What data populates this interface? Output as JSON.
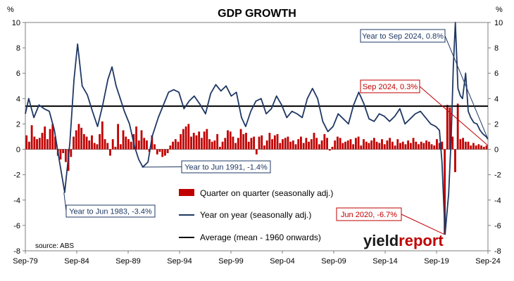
{
  "chart_data": {
    "type": "bar+line",
    "title": "GDP GROWTH",
    "ylabel_left": "%",
    "ylabel_right": "%",
    "ylim": [
      -8,
      10
    ],
    "yticks": [
      10,
      8,
      6,
      4,
      2,
      0,
      -2,
      -4,
      -6,
      -8
    ],
    "x_start": 1979.67,
    "x_end": 2024.67,
    "xticks": [
      "Sep-79",
      "Sep-84",
      "Sep-89",
      "Sep-94",
      "Sep-99",
      "Sep-04",
      "Sep-09",
      "Sep-14",
      "Sep-19",
      "Sep-24"
    ],
    "average_line": {
      "name": "Average (mean - 1960 onwards)",
      "value": 3.4
    },
    "series": [
      {
        "name": "Quarter on quarter (seasonally adj.)",
        "kind": "bar",
        "color": "#c00000",
        "values": [
          1.1,
          0.6,
          1.9,
          1.0,
          0.8,
          0.9,
          1.3,
          1.8,
          0.8,
          1.6,
          2.0,
          1.0,
          -0.5,
          -0.8,
          -0.3,
          -1.0,
          -1.7,
          -0.6,
          1.0,
          1.5,
          2.0,
          1.7,
          1.2,
          1.0,
          0.7,
          1.1,
          0.5,
          0.4,
          1.2,
          2.2,
          0.8,
          0.5,
          -0.5,
          0.8,
          0.2,
          2.0,
          0.4,
          1.5,
          1.0,
          0.8,
          0.6,
          1.2,
          1.8,
          0.7,
          1.5,
          0.9,
          0.7,
          -0.2,
          1.1,
          0.4,
          -0.4,
          -0.2,
          -0.6,
          -0.5,
          -0.3,
          0.3,
          0.6,
          0.8,
          0.6,
          1.2,
          1.6,
          1.8,
          2.0,
          1.0,
          1.3,
          1.1,
          1.4,
          0.9,
          1.4,
          1.6,
          0.8,
          0.6,
          0.7,
          1.2,
          0.2,
          0.6,
          0.9,
          1.5,
          1.4,
          1.0,
          0.5,
          0.9,
          1.6,
          1.2,
          1.3,
          0.6,
          0.9,
          1.0,
          -0.4,
          1.0,
          1.1,
          0.3,
          0.7,
          1.3,
          0.8,
          1.1,
          1.2,
          0.5,
          0.8,
          0.9,
          1.0,
          0.6,
          0.7,
          0.4,
          0.8,
          1.0,
          0.5,
          0.9,
          0.6,
          0.8,
          1.3,
          0.9,
          0.4,
          0.7,
          1.2,
          0.9,
          -0.1,
          0.2,
          0.7,
          1.0,
          0.9,
          0.5,
          0.6,
          0.7,
          0.8,
          0.4,
          0.9,
          1.0,
          0.3,
          0.8,
          0.6,
          0.5,
          0.7,
          0.9,
          0.6,
          0.5,
          0.8,
          0.4,
          0.7,
          0.9,
          0.6,
          0.3,
          0.8,
          0.5,
          0.6,
          0.4,
          0.7,
          0.5,
          0.9,
          0.6,
          0.4,
          0.6,
          0.5,
          0.7,
          0.6,
          0.4,
          0.3,
          0.8,
          0.5,
          0.6,
          -6.7,
          3.5,
          3.3,
          1.0,
          -1.8,
          3.6,
          0.8,
          0.9,
          0.6,
          0.6,
          0.3,
          0.5,
          0.3,
          0.4,
          0.3,
          0.2,
          0.3
        ]
      },
      {
        "name": "Year on year (seasonally adj.)",
        "kind": "line",
        "color": "#1f3864",
        "points": [
          [
            1979.67,
            2.8
          ],
          [
            1980.0,
            4.0
          ],
          [
            1980.5,
            2.5
          ],
          [
            1981.0,
            3.5
          ],
          [
            1981.5,
            3.2
          ],
          [
            1982.0,
            3.0
          ],
          [
            1982.5,
            1.5
          ],
          [
            1983.0,
            -1.0
          ],
          [
            1983.5,
            -3.4
          ],
          [
            1984.0,
            0.5
          ],
          [
            1984.4,
            5.5
          ],
          [
            1984.75,
            8.3
          ],
          [
            1985.2,
            5.0
          ],
          [
            1985.7,
            4.3
          ],
          [
            1986.2,
            3.0
          ],
          [
            1986.7,
            1.8
          ],
          [
            1987.2,
            3.5
          ],
          [
            1987.7,
            5.5
          ],
          [
            1988.1,
            6.5
          ],
          [
            1988.5,
            5.0
          ],
          [
            1988.9,
            4.0
          ],
          [
            1989.3,
            3.0
          ],
          [
            1989.8,
            2.0
          ],
          [
            1990.3,
            0.2
          ],
          [
            1990.7,
            -0.8
          ],
          [
            1991.1,
            -1.4
          ],
          [
            1991.6,
            -1.0
          ],
          [
            1992.0,
            1.0
          ],
          [
            1992.6,
            2.5
          ],
          [
            1993.1,
            3.5
          ],
          [
            1993.6,
            4.5
          ],
          [
            1994.1,
            4.7
          ],
          [
            1994.6,
            4.5
          ],
          [
            1995.1,
            3.2
          ],
          [
            1995.6,
            3.8
          ],
          [
            1996.1,
            4.2
          ],
          [
            1996.7,
            3.5
          ],
          [
            1997.2,
            2.8
          ],
          [
            1997.7,
            4.4
          ],
          [
            1998.2,
            5.1
          ],
          [
            1998.7,
            4.6
          ],
          [
            1999.2,
            5.0
          ],
          [
            1999.7,
            4.2
          ],
          [
            2000.2,
            4.5
          ],
          [
            2000.7,
            2.5
          ],
          [
            2001.1,
            1.8
          ],
          [
            2001.6,
            3.0
          ],
          [
            2002.1,
            3.8
          ],
          [
            2002.6,
            4.0
          ],
          [
            2003.1,
            2.8
          ],
          [
            2003.6,
            3.2
          ],
          [
            2004.1,
            4.2
          ],
          [
            2004.6,
            3.5
          ],
          [
            2005.1,
            2.5
          ],
          [
            2005.6,
            3.0
          ],
          [
            2006.1,
            2.8
          ],
          [
            2006.6,
            2.5
          ],
          [
            2007.1,
            4.0
          ],
          [
            2007.6,
            4.8
          ],
          [
            2008.1,
            4.0
          ],
          [
            2008.6,
            2.2
          ],
          [
            2009.1,
            1.4
          ],
          [
            2009.6,
            1.8
          ],
          [
            2010.1,
            2.8
          ],
          [
            2010.6,
            2.4
          ],
          [
            2011.1,
            2.0
          ],
          [
            2011.6,
            3.5
          ],
          [
            2012.1,
            4.5
          ],
          [
            2012.6,
            3.6
          ],
          [
            2013.1,
            2.4
          ],
          [
            2013.6,
            2.2
          ],
          [
            2014.1,
            2.8
          ],
          [
            2014.6,
            2.6
          ],
          [
            2015.1,
            2.2
          ],
          [
            2015.6,
            2.6
          ],
          [
            2016.1,
            3.2
          ],
          [
            2016.6,
            2.0
          ],
          [
            2017.1,
            2.4
          ],
          [
            2017.6,
            2.8
          ],
          [
            2018.1,
            3.0
          ],
          [
            2018.6,
            2.5
          ],
          [
            2019.1,
            2.0
          ],
          [
            2019.6,
            1.8
          ],
          [
            2019.95,
            1.5
          ],
          [
            2020.2,
            -1.0
          ],
          [
            2020.5,
            -6.7
          ],
          [
            2020.85,
            -3.5
          ],
          [
            2021.1,
            1.1
          ],
          [
            2021.3,
            6.5
          ],
          [
            2021.5,
            10.0
          ],
          [
            2021.75,
            4.8
          ],
          [
            2022.0,
            4.2
          ],
          [
            2022.2,
            4.0
          ],
          [
            2022.5,
            6.0
          ],
          [
            2022.75,
            3.0
          ],
          [
            2023.0,
            2.5
          ],
          [
            2023.3,
            2.1
          ],
          [
            2023.6,
            2.0
          ],
          [
            2023.9,
            1.5
          ],
          [
            2024.2,
            1.2
          ],
          [
            2024.5,
            1.0
          ],
          [
            2024.67,
            0.8
          ]
        ]
      }
    ],
    "annotations": [
      {
        "text": "Year to Jun 1983, -3.4%",
        "x": 1983.42,
        "y": -3.4,
        "color": "#1f3864"
      },
      {
        "text": "Year to Jun 1991, -1.4%",
        "x": 1991.0,
        "y": -1.4,
        "color": "#1f3864"
      },
      {
        "text": "Year to Sep 2024, 0.8%",
        "x": 2024.67,
        "y": 0.8,
        "color": "#1f3864"
      },
      {
        "text": "Sep 2024, 0.3%",
        "x": 2024.67,
        "y": 0.3,
        "color": "#c00000"
      },
      {
        "text": "Jun 2020, -6.7%",
        "x": 2020.42,
        "y": -6.7,
        "color": "#c00000"
      }
    ],
    "source": "source: ABS",
    "logo": {
      "part1": "yield",
      "part2": "report",
      "color1": "#1a1a1a",
      "color2": "#c00000"
    }
  }
}
